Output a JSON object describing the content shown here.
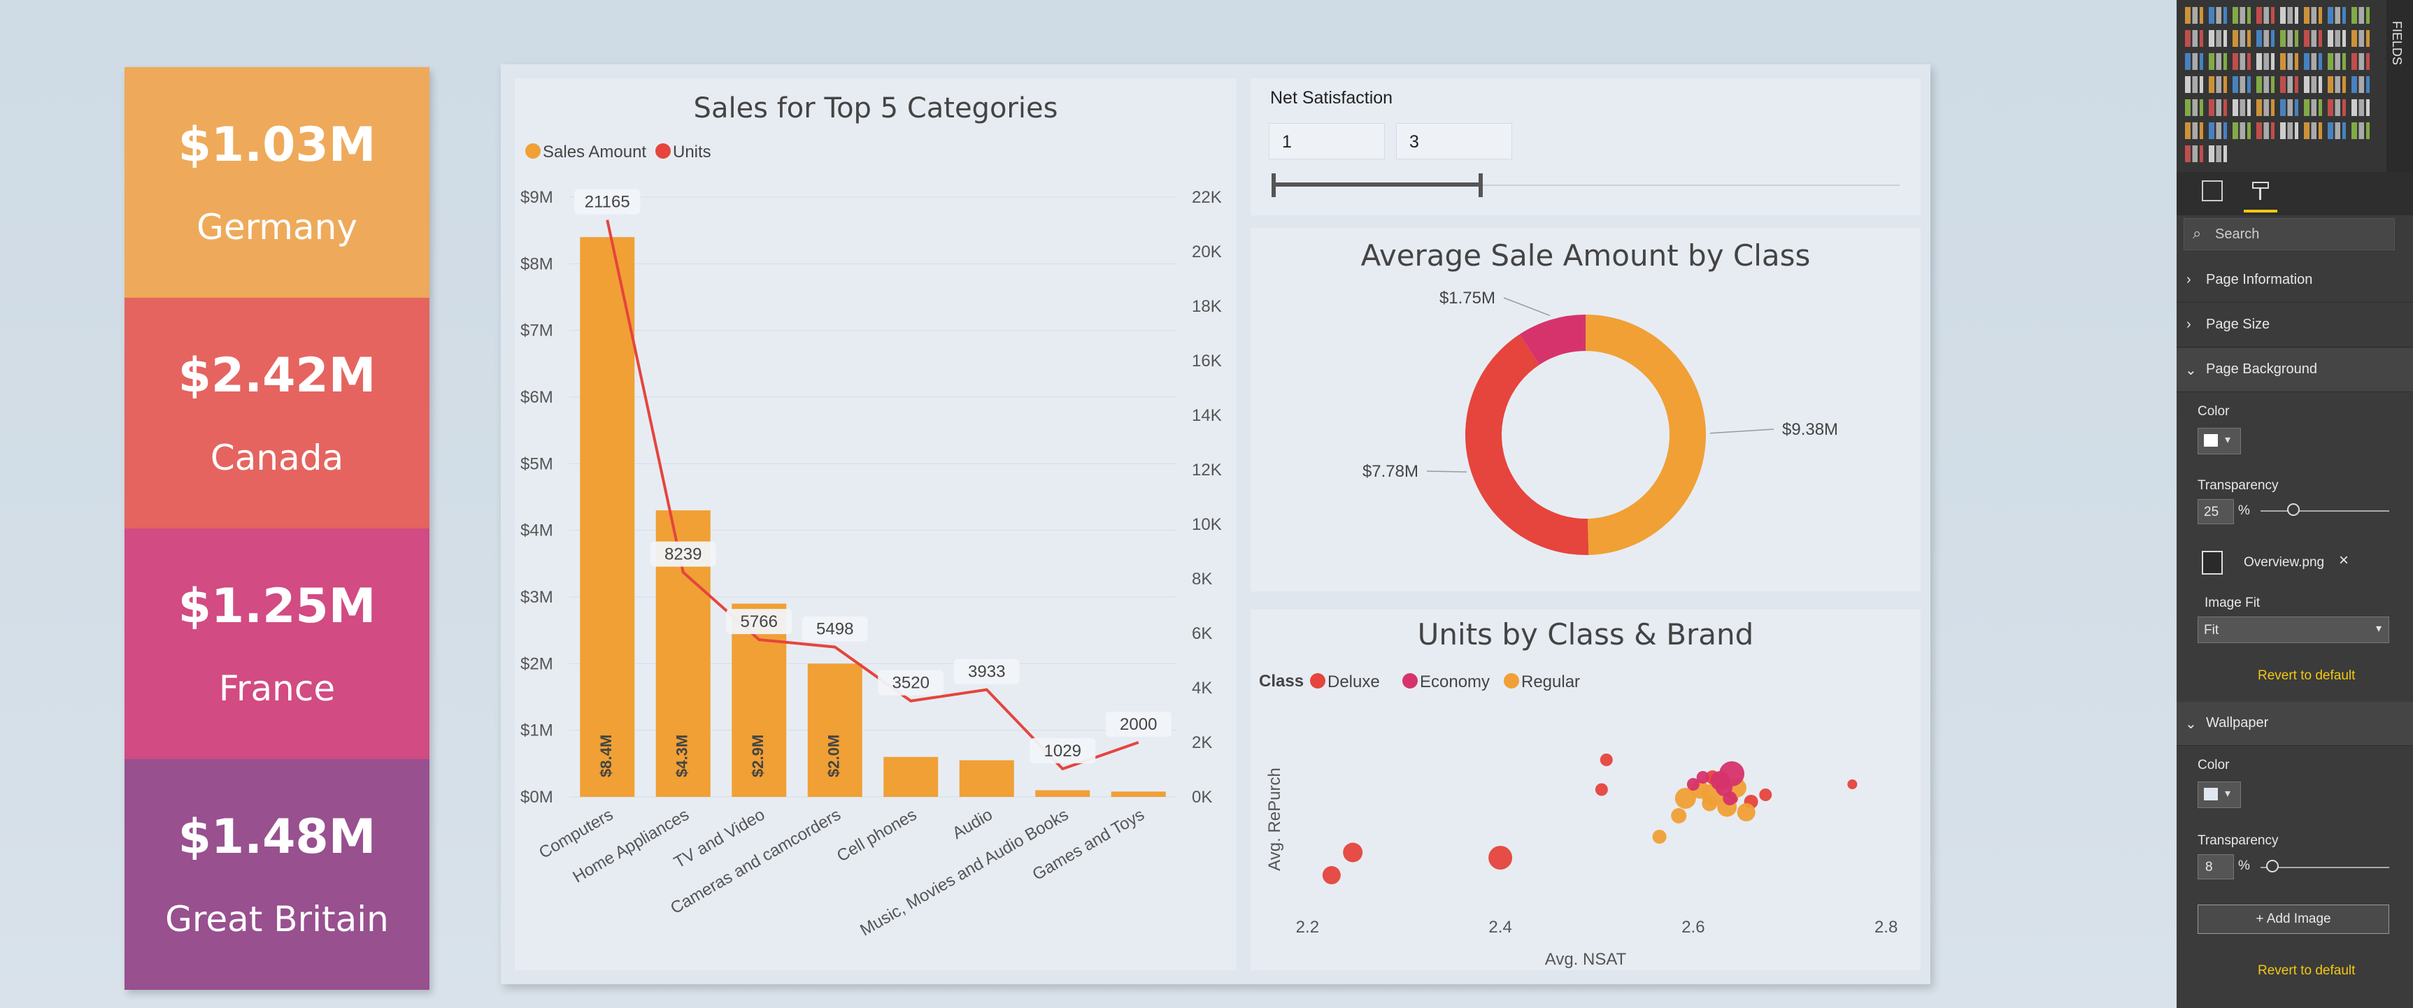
{
  "kpis": [
    {
      "value": "$1.03M",
      "label": "Germany",
      "color": "#eeaa5a"
    },
    {
      "value": "$2.42M",
      "label": "Canada",
      "color": "#e5645f"
    },
    {
      "value": "$1.25M",
      "label": "France",
      "color": "#d24b82"
    },
    {
      "value": "$1.48M",
      "label": "Great Britain",
      "color": "#98508f"
    }
  ],
  "chart_data": [
    {
      "type": "bar",
      "title": "Sales for Top 5 Categories",
      "legend": [
        "Sales Amount",
        "Units"
      ],
      "categories": [
        "Computers",
        "Home Appliances",
        "TV and Video",
        "Cameras and camcorders",
        "Cell phones",
        "Audio",
        "Music, Movies and Audio Books",
        "Games and Toys"
      ],
      "series": [
        {
          "name": "Sales Amount",
          "type": "bar",
          "color": "#f0a035",
          "values": [
            8.4,
            4.3,
            2.9,
            2.0,
            0.6,
            0.55,
            0.1,
            0.08
          ],
          "labels": [
            "$8.4M",
            "$4.3M",
            "$2.9M",
            "$2.0M",
            "",
            "",
            "",
            ""
          ]
        },
        {
          "name": "Units",
          "type": "line",
          "color": "#e5453c",
          "values": [
            21165,
            8239,
            5766,
            5498,
            3520,
            3933,
            1029,
            2000
          ],
          "labels": [
            "21165",
            "8239",
            "5766",
            "5498",
            "3520",
            "3933",
            "1029",
            "2000"
          ]
        }
      ],
      "y_left_ticks": [
        "$0M",
        "$1M",
        "$2M",
        "$3M",
        "$4M",
        "$5M",
        "$6M",
        "$7M",
        "$8M",
        "$9M"
      ],
      "y_right_ticks": [
        "0K",
        "2K",
        "4K",
        "6K",
        "8K",
        "10K",
        "12K",
        "14K",
        "16K",
        "18K",
        "20K",
        "22K"
      ],
      "ylim_left": [
        0,
        9
      ],
      "ylim_right": [
        0,
        22000
      ],
      "legend_placement": "top-left"
    },
    {
      "type": "pie",
      "title": "Average Sale Amount by Class",
      "slices": [
        {
          "label": "$9.38M",
          "value": 9.38,
          "color": "#f0a035"
        },
        {
          "label": "$7.78M",
          "value": 7.78,
          "color": "#e5453c"
        },
        {
          "label": "$1.75M",
          "value": 1.75,
          "color": "#d6336c"
        }
      ]
    },
    {
      "type": "scatter",
      "title": "Units by Class & Brand",
      "legend_title": "Class",
      "legend": [
        {
          "name": "Deluxe",
          "color": "#e5453c"
        },
        {
          "name": "Economy",
          "color": "#d6336c"
        },
        {
          "name": "Regular",
          "color": "#f0a035"
        }
      ],
      "xlabel": "Avg. NSAT",
      "ylabel": "Avg. RePurch",
      "x_ticks": [
        "2.2",
        "2.4",
        "2.6",
        "2.8"
      ],
      "xlim": [
        2.17,
        2.83
      ],
      "ylim": [
        0,
        1
      ],
      "points": [
        {
          "x": 2.225,
          "y": 0.16,
          "r": 13,
          "c": "Deluxe"
        },
        {
          "x": 2.247,
          "y": 0.29,
          "r": 14,
          "c": "Deluxe"
        },
        {
          "x": 2.4,
          "y": 0.26,
          "r": 17,
          "c": "Deluxe"
        },
        {
          "x": 2.51,
          "y": 0.82,
          "r": 9,
          "c": "Deluxe"
        },
        {
          "x": 2.505,
          "y": 0.65,
          "r": 9,
          "c": "Deluxe"
        },
        {
          "x": 2.765,
          "y": 0.68,
          "r": 7,
          "c": "Deluxe"
        },
        {
          "x": 2.62,
          "y": 0.72,
          "r": 10,
          "c": "Deluxe"
        },
        {
          "x": 2.64,
          "y": 0.6,
          "r": 9,
          "c": "Deluxe"
        },
        {
          "x": 2.66,
          "y": 0.58,
          "r": 10,
          "c": "Deluxe"
        },
        {
          "x": 2.675,
          "y": 0.62,
          "r": 9,
          "c": "Deluxe"
        },
        {
          "x": 2.585,
          "y": 0.5,
          "r": 11,
          "c": "Regular"
        },
        {
          "x": 2.592,
          "y": 0.6,
          "r": 15,
          "c": "Regular"
        },
        {
          "x": 2.607,
          "y": 0.65,
          "r": 13,
          "c": "Regular"
        },
        {
          "x": 2.62,
          "y": 0.62,
          "r": 16,
          "c": "Regular"
        },
        {
          "x": 2.635,
          "y": 0.55,
          "r": 14,
          "c": "Regular"
        },
        {
          "x": 2.645,
          "y": 0.66,
          "r": 14,
          "c": "Regular"
        },
        {
          "x": 2.655,
          "y": 0.52,
          "r": 13,
          "c": "Regular"
        },
        {
          "x": 2.617,
          "y": 0.57,
          "r": 11,
          "c": "Regular"
        },
        {
          "x": 2.565,
          "y": 0.38,
          "r": 10,
          "c": "Regular"
        },
        {
          "x": 2.61,
          "y": 0.72,
          "r": 9,
          "c": "Economy"
        },
        {
          "x": 2.628,
          "y": 0.7,
          "r": 14,
          "c": "Economy"
        },
        {
          "x": 2.64,
          "y": 0.74,
          "r": 18,
          "c": "Economy"
        },
        {
          "x": 2.638,
          "y": 0.6,
          "r": 10,
          "c": "Economy"
        },
        {
          "x": 2.632,
          "y": 0.66,
          "r": 12,
          "c": "Economy"
        },
        {
          "x": 2.6,
          "y": 0.68,
          "r": 9,
          "c": "Economy"
        }
      ]
    }
  ],
  "slicer": {
    "title": "Net Satisfaction",
    "from": "1",
    "to": "3",
    "fill_fraction": 0.33
  },
  "pane": {
    "fields_tab": "FIELDS",
    "search_placeholder": "Search",
    "sections": [
      "Page Information",
      "Page Size",
      "Page Background"
    ],
    "color_label": "Color",
    "transparency_label": "Transparency",
    "bg_transparency": "25",
    "percent": "%",
    "image_name": "Overview.png",
    "image_fit_label": "Image Fit",
    "image_fit_value": "Fit",
    "revert": "Revert to default",
    "wallpaper": "Wallpaper",
    "wp_transparency": "8",
    "add_image": "+ Add Image"
  }
}
